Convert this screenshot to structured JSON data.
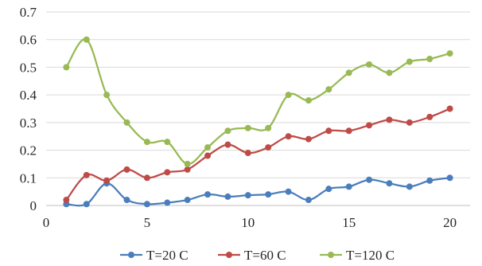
{
  "chart_data": {
    "type": "line",
    "title": "",
    "xlabel": "",
    "ylabel": "",
    "xlim": [
      0,
      21
    ],
    "ylim": [
      0,
      0.7
    ],
    "x_ticks": [
      0,
      5,
      10,
      15,
      20
    ],
    "x_tick_labels": [
      "0",
      "5",
      "10",
      "15",
      "20"
    ],
    "y_ticks": [
      0,
      0.1,
      0.2,
      0.3,
      0.4,
      0.5,
      0.6,
      0.7
    ],
    "y_tick_labels": [
      "0",
      "0.1",
      "0.2",
      "0.3",
      "0.4",
      "0.5",
      "0.6",
      "0.7"
    ],
    "grid": "horizontal",
    "legend_position": "bottom",
    "smooth": true,
    "x": [
      1,
      2,
      3,
      4,
      5,
      6,
      7,
      8,
      9,
      10,
      11,
      12,
      13,
      14,
      15,
      16,
      17,
      18,
      19,
      20
    ],
    "series": [
      {
        "name": "T=20 C",
        "color": "#4a7ebb",
        "values": [
          0.005,
          0.005,
          0.08,
          0.02,
          0.005,
          0.01,
          0.02,
          0.04,
          0.032,
          0.037,
          0.04,
          0.05,
          0.02,
          0.06,
          0.068,
          0.093,
          0.08,
          0.068,
          0.09,
          0.1
        ]
      },
      {
        "name": "T=60 C",
        "color": "#be4b48",
        "values": [
          0.02,
          0.11,
          0.09,
          0.13,
          0.1,
          0.12,
          0.13,
          0.18,
          0.22,
          0.19,
          0.21,
          0.25,
          0.24,
          0.27,
          0.27,
          0.29,
          0.31,
          0.3,
          0.32,
          0.35
        ]
      },
      {
        "name": "T=120 C",
        "color": "#98b954",
        "values": [
          0.5,
          0.6,
          0.4,
          0.3,
          0.23,
          0.23,
          0.15,
          0.21,
          0.27,
          0.28,
          0.28,
          0.4,
          0.38,
          0.42,
          0.48,
          0.51,
          0.48,
          0.52,
          0.53,
          0.55
        ]
      }
    ]
  }
}
